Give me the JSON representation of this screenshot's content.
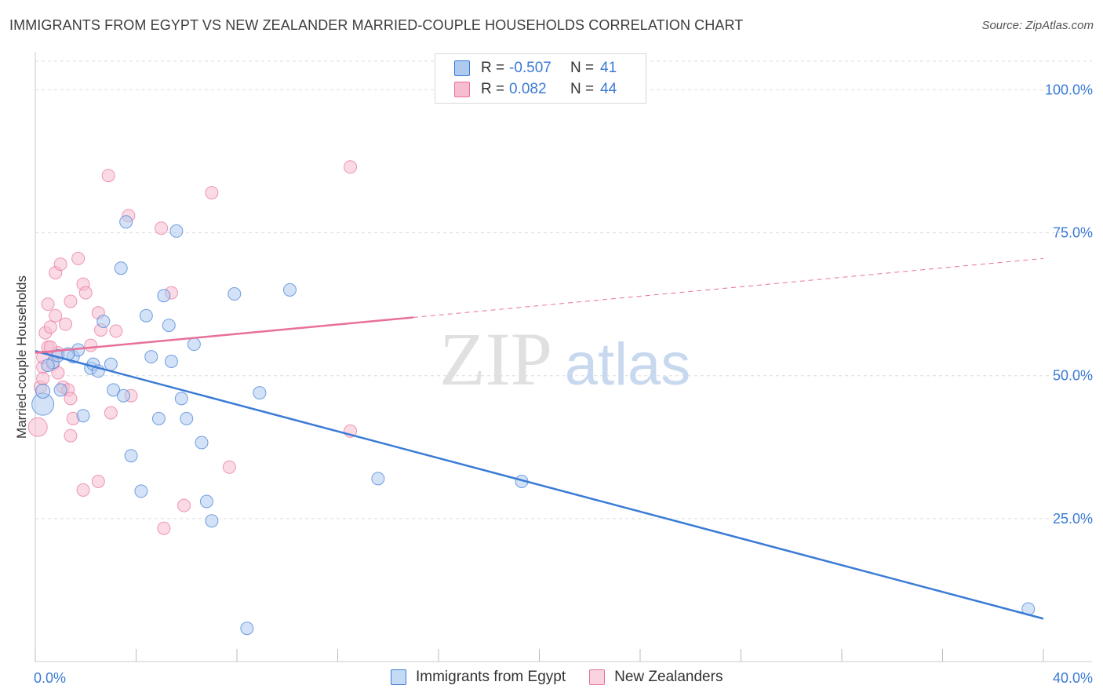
{
  "title": "IMMIGRANTS FROM EGYPT VS NEW ZEALANDER MARRIED-COUPLE HOUSEHOLDS CORRELATION CHART",
  "source": "Source: ZipAtlas.com",
  "colors": {
    "blue": "#3a7bd5",
    "blue_fill": "#aecbef",
    "pink": "#e8709a",
    "pink_fill": "#f6bcd0",
    "grid": "#dddddd",
    "axis_text": "#3a7bd5"
  },
  "legend": {
    "series1": {
      "r_label": "R =",
      "r_value": "-0.507",
      "n_label": "N =",
      "n_value": "41"
    },
    "series2": {
      "r_label": "R =",
      "r_value": "0.082",
      "n_label": "N =",
      "n_value": "44"
    }
  },
  "chart_data": {
    "type": "scatter",
    "title": "IMMIGRANTS FROM EGYPT VS NEW ZEALANDER MARRIED-COUPLE HOUSEHOLDS CORRELATION CHART",
    "xlabel": "",
    "ylabel": "Married-couple Households",
    "xlim": [
      0,
      40
    ],
    "ylim": [
      0,
      105
    ],
    "x_tick_labels": [
      "0.0%",
      "40.0%"
    ],
    "y_tick_labels": [
      "100.0%",
      "75.0%",
      "50.0%",
      "25.0%"
    ],
    "y_ticks": [
      100,
      75,
      50,
      25
    ],
    "watermark": {
      "zip": "ZIP",
      "atlas": "atlas"
    },
    "series": [
      {
        "name": "Immigrants from Egypt",
        "color": "#3a7bd5",
        "trend": {
          "x": [
            0,
            40
          ],
          "y": [
            54.3,
            7.5
          ],
          "dashed_from": null
        },
        "points": [
          {
            "x": 0.3,
            "y": 45.0,
            "s": 14
          },
          {
            "x": 0.3,
            "y": 47.3,
            "s": 9
          },
          {
            "x": 0.7,
            "y": 52.3,
            "s": 8
          },
          {
            "x": 0.9,
            "y": 53.5,
            "s": 8
          },
          {
            "x": 1.0,
            "y": 47.5,
            "s": 8
          },
          {
            "x": 1.5,
            "y": 53.3,
            "s": 8
          },
          {
            "x": 1.7,
            "y": 54.5,
            "s": 8
          },
          {
            "x": 1.9,
            "y": 43.0,
            "s": 8
          },
          {
            "x": 2.2,
            "y": 51.3,
            "s": 8
          },
          {
            "x": 2.3,
            "y": 52.0,
            "s": 8
          },
          {
            "x": 2.5,
            "y": 50.8,
            "s": 8
          },
          {
            "x": 2.7,
            "y": 59.5,
            "s": 8
          },
          {
            "x": 3.0,
            "y": 52.0,
            "s": 8
          },
          {
            "x": 3.1,
            "y": 47.5,
            "s": 8
          },
          {
            "x": 3.4,
            "y": 68.8,
            "s": 8
          },
          {
            "x": 3.5,
            "y": 46.5,
            "s": 8
          },
          {
            "x": 3.6,
            "y": 76.9,
            "s": 8
          },
          {
            "x": 3.8,
            "y": 36.0,
            "s": 8
          },
          {
            "x": 4.2,
            "y": 29.8,
            "s": 8
          },
          {
            "x": 4.4,
            "y": 60.5,
            "s": 8
          },
          {
            "x": 4.6,
            "y": 53.3,
            "s": 8
          },
          {
            "x": 4.9,
            "y": 42.5,
            "s": 8
          },
          {
            "x": 5.1,
            "y": 64.0,
            "s": 8
          },
          {
            "x": 5.3,
            "y": 58.8,
            "s": 8
          },
          {
            "x": 5.4,
            "y": 52.5,
            "s": 8
          },
          {
            "x": 5.6,
            "y": 75.3,
            "s": 8
          },
          {
            "x": 5.8,
            "y": 46.0,
            "s": 8
          },
          {
            "x": 6.0,
            "y": 42.5,
            "s": 8
          },
          {
            "x": 6.3,
            "y": 55.5,
            "s": 8
          },
          {
            "x": 6.6,
            "y": 38.3,
            "s": 8
          },
          {
            "x": 6.8,
            "y": 28.0,
            "s": 8
          },
          {
            "x": 7.0,
            "y": 24.6,
            "s": 8
          },
          {
            "x": 7.9,
            "y": 64.3,
            "s": 8
          },
          {
            "x": 8.4,
            "y": 5.8,
            "s": 8
          },
          {
            "x": 8.9,
            "y": 47.0,
            "s": 8
          },
          {
            "x": 10.1,
            "y": 65.0,
            "s": 8
          },
          {
            "x": 13.6,
            "y": 32.0,
            "s": 8
          },
          {
            "x": 19.3,
            "y": 31.5,
            "s": 8
          },
          {
            "x": 39.4,
            "y": 9.2,
            "s": 8
          },
          {
            "x": 1.3,
            "y": 53.8,
            "s": 8
          },
          {
            "x": 0.5,
            "y": 51.8,
            "s": 8
          }
        ]
      },
      {
        "name": "New Zealanders",
        "color": "#e8709a",
        "trend": {
          "x": [
            0,
            40
          ],
          "y": [
            54.0,
            70.5
          ],
          "dashed_from": 15.0
        },
        "points": [
          {
            "x": 0.1,
            "y": 41.0,
            "s": 12
          },
          {
            "x": 0.2,
            "y": 48.0,
            "s": 8
          },
          {
            "x": 0.3,
            "y": 51.5,
            "s": 8
          },
          {
            "x": 0.3,
            "y": 49.5,
            "s": 8
          },
          {
            "x": 0.4,
            "y": 57.5,
            "s": 8
          },
          {
            "x": 0.5,
            "y": 55.0,
            "s": 8
          },
          {
            "x": 0.5,
            "y": 62.5,
            "s": 8
          },
          {
            "x": 0.6,
            "y": 58.5,
            "s": 8
          },
          {
            "x": 0.7,
            "y": 52.0,
            "s": 8
          },
          {
            "x": 0.8,
            "y": 68.0,
            "s": 8
          },
          {
            "x": 0.8,
            "y": 60.5,
            "s": 8
          },
          {
            "x": 0.9,
            "y": 54.0,
            "s": 8
          },
          {
            "x": 0.9,
            "y": 50.5,
            "s": 8
          },
          {
            "x": 1.0,
            "y": 69.5,
            "s": 8
          },
          {
            "x": 1.1,
            "y": 48.0,
            "s": 8
          },
          {
            "x": 1.2,
            "y": 59.0,
            "s": 8
          },
          {
            "x": 1.3,
            "y": 47.5,
            "s": 8
          },
          {
            "x": 1.4,
            "y": 46.0,
            "s": 8
          },
          {
            "x": 1.4,
            "y": 39.5,
            "s": 8
          },
          {
            "x": 1.5,
            "y": 42.5,
            "s": 8
          },
          {
            "x": 1.4,
            "y": 63.0,
            "s": 8
          },
          {
            "x": 1.7,
            "y": 70.5,
            "s": 8
          },
          {
            "x": 1.9,
            "y": 66.0,
            "s": 8
          },
          {
            "x": 2.0,
            "y": 64.5,
            "s": 8
          },
          {
            "x": 1.9,
            "y": 30.0,
            "s": 8
          },
          {
            "x": 2.2,
            "y": 55.3,
            "s": 8
          },
          {
            "x": 2.5,
            "y": 61.0,
            "s": 8
          },
          {
            "x": 2.6,
            "y": 58.0,
            "s": 8
          },
          {
            "x": 2.5,
            "y": 31.5,
            "s": 8
          },
          {
            "x": 2.9,
            "y": 85.0,
            "s": 8
          },
          {
            "x": 3.0,
            "y": 43.5,
            "s": 8
          },
          {
            "x": 3.2,
            "y": 57.8,
            "s": 8
          },
          {
            "x": 3.7,
            "y": 78.0,
            "s": 8
          },
          {
            "x": 3.8,
            "y": 46.5,
            "s": 8
          },
          {
            "x": 5.0,
            "y": 75.8,
            "s": 8
          },
          {
            "x": 5.1,
            "y": 23.3,
            "s": 8
          },
          {
            "x": 5.4,
            "y": 64.5,
            "s": 8
          },
          {
            "x": 5.9,
            "y": 27.3,
            "s": 8
          },
          {
            "x": 7.0,
            "y": 82.0,
            "s": 8
          },
          {
            "x": 7.7,
            "y": 34.0,
            "s": 8
          },
          {
            "x": 12.5,
            "y": 86.5,
            "s": 8
          },
          {
            "x": 12.5,
            "y": 40.3,
            "s": 8
          },
          {
            "x": 0.6,
            "y": 55.0,
            "s": 8
          },
          {
            "x": 0.3,
            "y": 53.2,
            "s": 8
          }
        ]
      }
    ]
  },
  "bottom_legend": {
    "item1": "Immigrants from Egypt",
    "item2": "New Zealanders"
  }
}
